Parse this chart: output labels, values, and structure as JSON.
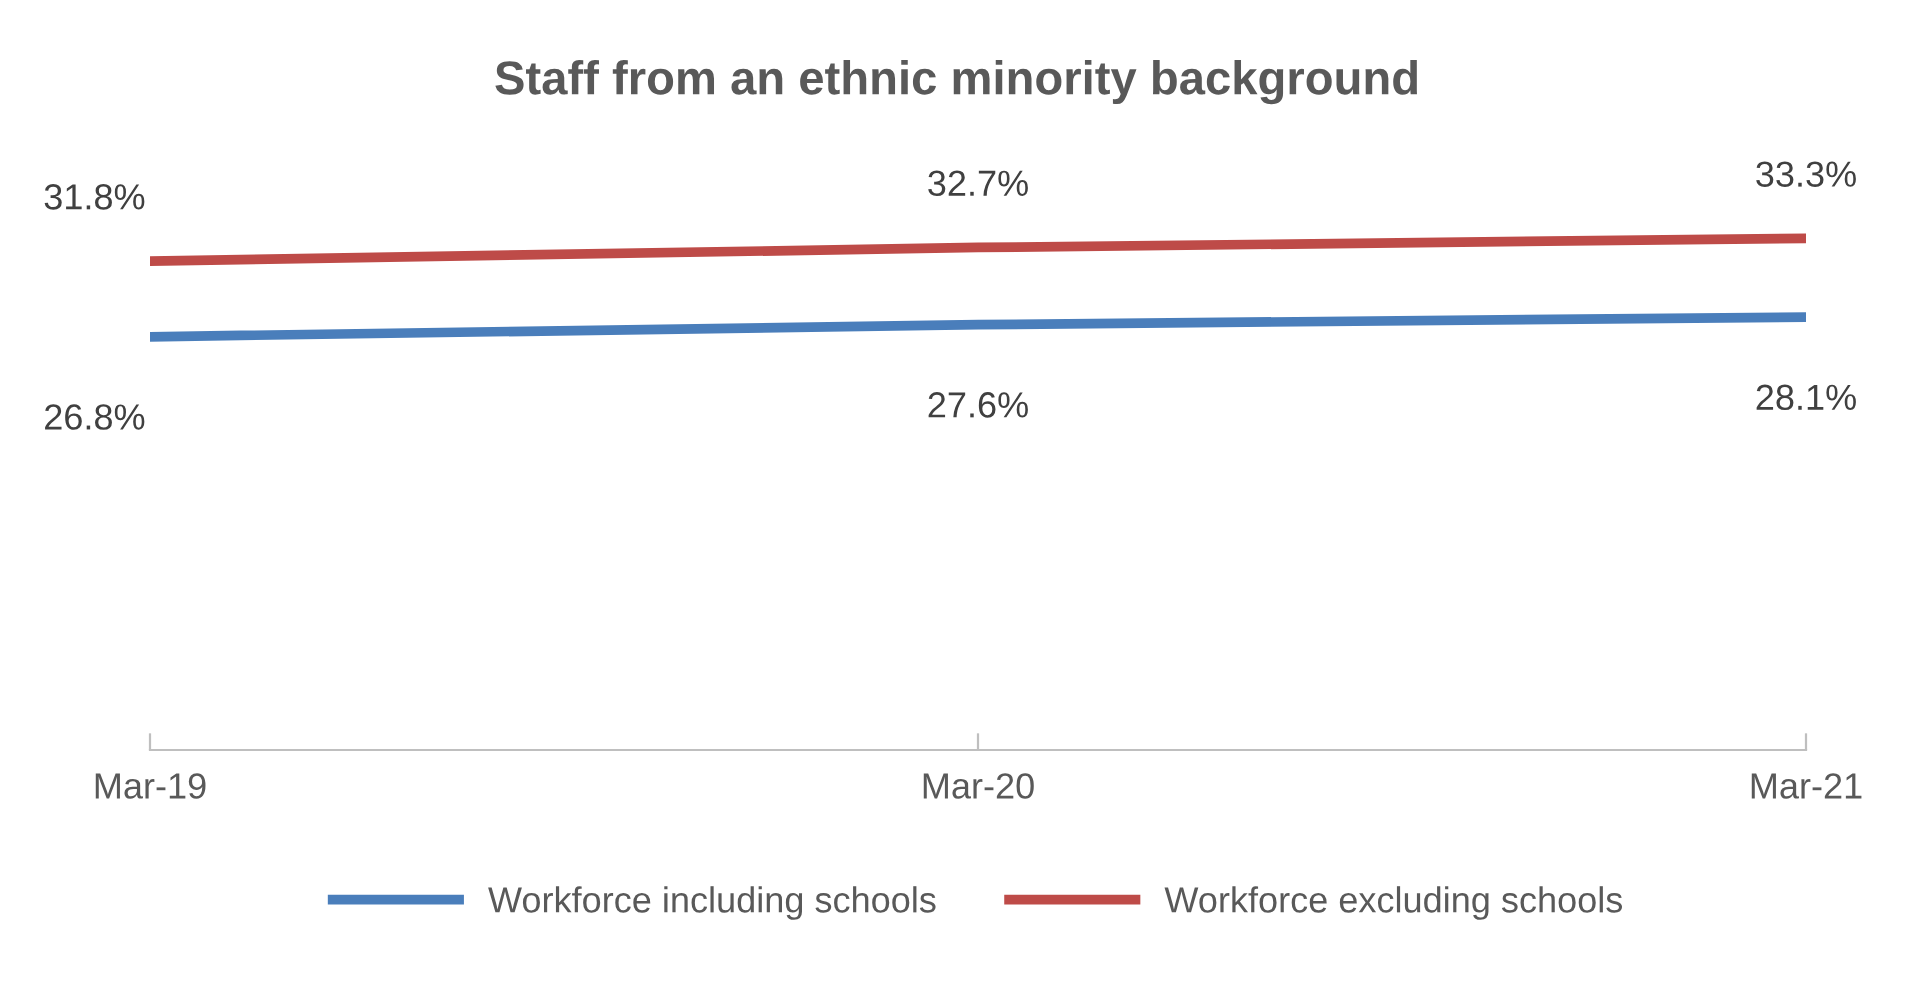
{
  "chart_data": {
    "type": "line",
    "title": "Staff from an ethnic minority background",
    "categories": [
      "Mar-19",
      "Mar-20",
      "Mar-21"
    ],
    "series": [
      {
        "name": "Workforce including schools",
        "color": "#4a7ebb",
        "values": [
          26.8,
          27.6,
          28.1
        ],
        "value_labels": [
          "26.8%",
          "27.6%",
          "28.1%"
        ]
      },
      {
        "name": "Workforce excluding schools",
        "color": "#be4b48",
        "values": [
          31.8,
          32.7,
          33.3
        ],
        "value_labels": [
          "31.8%",
          "32.7%",
          "33.3%"
        ]
      }
    ],
    "grid": false,
    "legend": "bottom",
    "marker": "none",
    "line_style": "solid"
  }
}
